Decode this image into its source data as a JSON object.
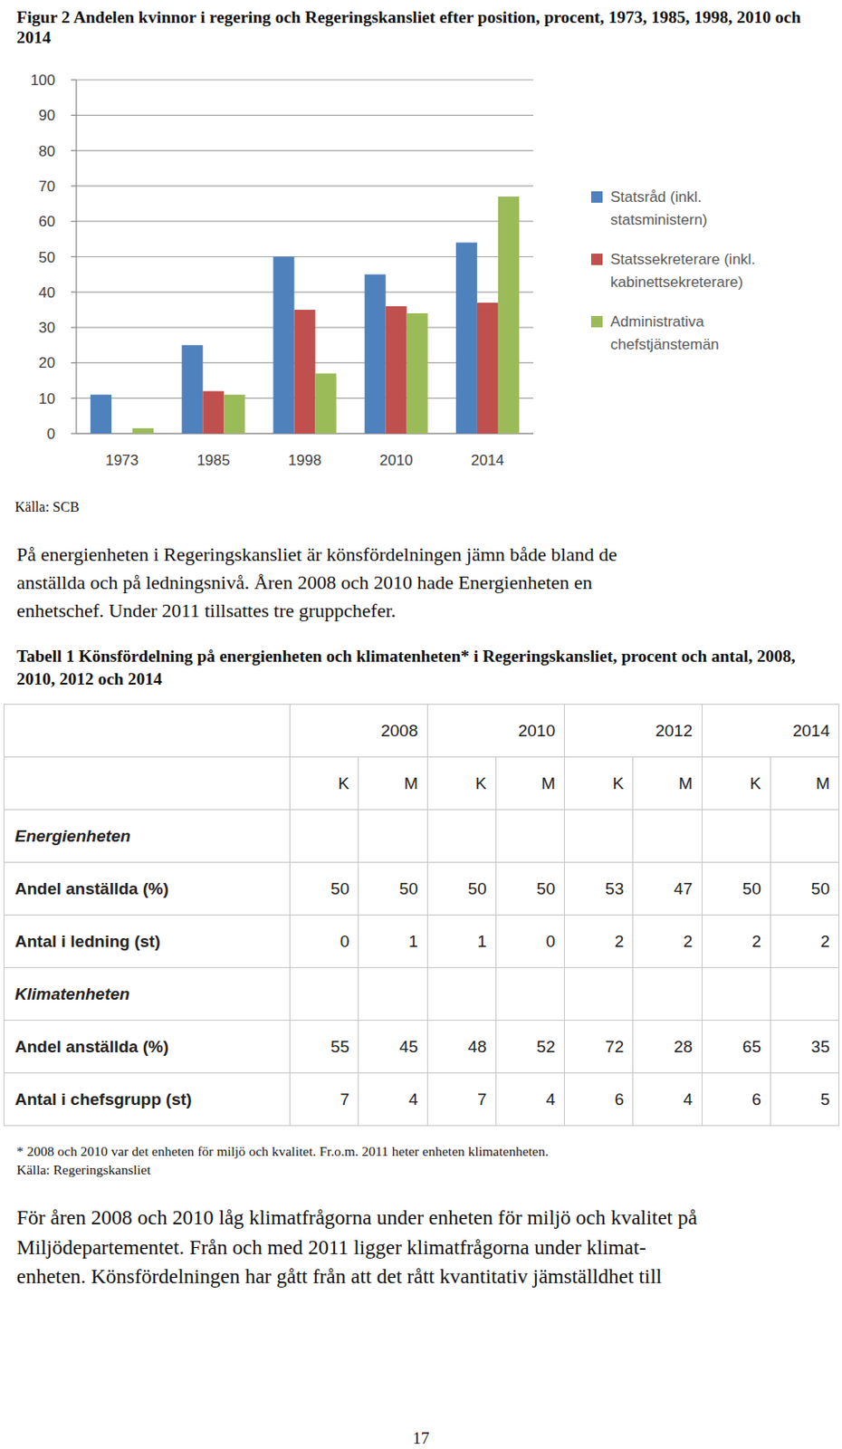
{
  "chart_data": {
    "type": "bar",
    "title": "Figur 2 Andelen kvinnor i regering och Regeringskansliet efter position, procent, 1973, 1985, 1998, 2010 och 2014",
    "categories": [
      "1973",
      "1985",
      "1998",
      "2010",
      "2014"
    ],
    "series": [
      {
        "name": "Statsråd (inkl. statsministern)",
        "color": "#4f81bd",
        "values": [
          11,
          25,
          50,
          45,
          54
        ]
      },
      {
        "name": "Statssekreterare (inkl. kabinettsekreterare)",
        "color": "#c0504d",
        "values": [
          0,
          12,
          35,
          36,
          37
        ]
      },
      {
        "name": "Administrativa chefstjänstemän",
        "color": "#9bbb59",
        "values": [
          1.5,
          11,
          17,
          34,
          67
        ]
      }
    ],
    "ylim": [
      0,
      100
    ],
    "yticks": [
      0,
      10,
      20,
      30,
      40,
      50,
      60,
      70,
      80,
      90,
      100
    ],
    "grid": true,
    "legend": "right"
  },
  "figure_source": "Källa: SCB",
  "paragraph_1": [
    "På energienheten i Regeringskansliet är könsfördelningen jämn både bland de",
    "anställda och på ledningsnivå. Åren 2008 och 2010 hade Energienheten en",
    "enhetschef. Under 2011 tillsattes tre gruppchefer."
  ],
  "table": {
    "title": "Tabell 1 Könsfördelning på energienheten och klimatenheten* i Regeringskansliet, procent och antal, 2008, 2010, 2012 och 2014",
    "years": [
      "2008",
      "2010",
      "2012",
      "2014"
    ],
    "sexes": [
      "K",
      "M",
      "K",
      "M",
      "K",
      "M",
      "K",
      "M"
    ],
    "sections": [
      {
        "name": "Energienheten",
        "rows": [
          {
            "label": "Andel anställda (%)",
            "values": [
              50,
              50,
              50,
              50,
              53,
              47,
              50,
              50
            ]
          },
          {
            "label": "Antal i ledning (st)",
            "values": [
              0,
              1,
              1,
              0,
              2,
              2,
              2,
              2
            ]
          }
        ]
      },
      {
        "name": "Klimatenheten",
        "rows": [
          {
            "label": "Andel anställda (%)",
            "values": [
              55,
              45,
              48,
              52,
              72,
              28,
              65,
              35
            ]
          },
          {
            "label": "Antal i chefsgrupp (st)",
            "values": [
              7,
              4,
              7,
              4,
              6,
              4,
              6,
              5
            ]
          }
        ]
      }
    ],
    "footnote": "* 2008 och 2010 var det enheten för miljö och kvalitet. Fr.o.m. 2011 heter enheten klimatenheten.",
    "source": "Källa: Regeringskansliet"
  },
  "paragraph_2": [
    "För åren 2008 och 2010 låg klimatfrågorna under enheten för miljö och kvalitet på",
    "Miljödepartementet. Från och med 2011 ligger klimatfrågorna under klimat-",
    "enheten. Könsfördelningen har gått från att det rått kvantitativ jämställdhet till"
  ],
  "page_number": "17"
}
